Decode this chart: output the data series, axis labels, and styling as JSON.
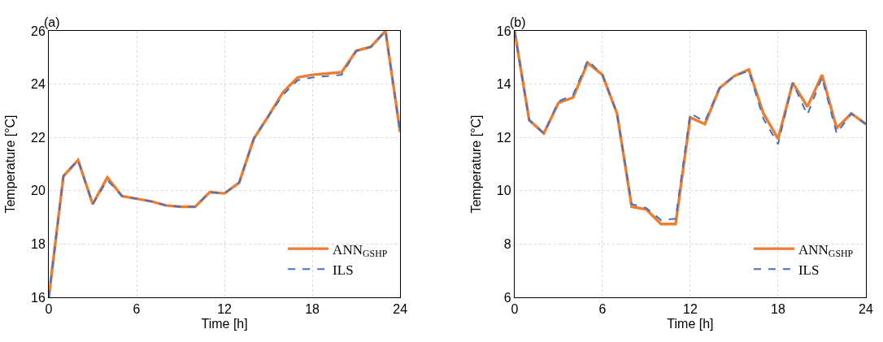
{
  "chart_data": [
    {
      "type": "line",
      "title": "(a)",
      "xlabel": "Time [h]",
      "ylabel": "Temperature [°C]",
      "x": [
        0,
        1,
        2,
        3,
        4,
        5,
        6,
        7,
        8,
        9,
        10,
        11,
        12,
        13,
        14,
        15,
        16,
        17,
        18,
        19,
        20,
        21,
        22,
        23,
        24
      ],
      "series": [
        {
          "name": "ANN$_{GSHP}$",
          "color": "#ed7d31",
          "line_style": "solid",
          "values": [
            16,
            20.55,
            21.15,
            19.5,
            20.5,
            19.8,
            19.7,
            19.6,
            19.45,
            19.4,
            19.4,
            19.95,
            19.9,
            20.3,
            21.95,
            22.8,
            23.7,
            24.25,
            24.35,
            24.4,
            24.45,
            25.25,
            25.4,
            26,
            22.2
          ]
        },
        {
          "name": "ILS",
          "color": "#4472c4",
          "line_style": "dashed",
          "values": [
            16,
            20.55,
            21.15,
            19.5,
            20.4,
            19.8,
            19.7,
            19.6,
            19.45,
            19.4,
            19.4,
            19.95,
            19.9,
            20.3,
            21.95,
            22.8,
            23.6,
            24.15,
            24.25,
            24.3,
            24.35,
            25.25,
            25.4,
            26,
            22.2
          ]
        }
      ],
      "xlim": [
        0,
        24
      ],
      "xticks": [
        0,
        6,
        12,
        18,
        24
      ],
      "ylim": [
        16,
        26
      ],
      "yticks": [
        16,
        18,
        20,
        22,
        24,
        26
      ],
      "grid": true,
      "legend": "bottom right"
    },
    {
      "type": "line",
      "title": "(b)",
      "xlabel": "Time [h]",
      "ylabel": "Temperature [°C]",
      "x": [
        0,
        1,
        2,
        3,
        4,
        5,
        6,
        7,
        8,
        9,
        10,
        11,
        12,
        13,
        14,
        15,
        16,
        17,
        18,
        19,
        20,
        21,
        22,
        23,
        24
      ],
      "series": [
        {
          "name": "ANN$_{GSHP}$",
          "color": "#ed7d31",
          "line_style": "solid",
          "values": [
            16,
            12.65,
            12.15,
            13.3,
            13.5,
            14.8,
            14.35,
            12.9,
            9.4,
            9.3,
            8.75,
            8.75,
            12.75,
            12.5,
            13.85,
            14.3,
            14.55,
            12.9,
            11.95,
            14.05,
            13.15,
            14.35,
            12.35,
            12.9,
            12.5
          ]
        },
        {
          "name": "ILS",
          "color": "#4472c4",
          "line_style": "dashed",
          "values": [
            16,
            12.65,
            12.15,
            13.35,
            13.6,
            14.9,
            14.35,
            12.9,
            9.5,
            9.35,
            8.9,
            8.95,
            12.9,
            12.6,
            13.85,
            14.3,
            14.5,
            12.7,
            11.75,
            14.05,
            12.85,
            14.25,
            12.15,
            12.9,
            12.5
          ]
        }
      ],
      "xlim": [
        0,
        24
      ],
      "xticks": [
        0,
        6,
        12,
        18,
        24
      ],
      "ylim": [
        6,
        16
      ],
      "yticks": [
        6,
        8,
        10,
        12,
        14,
        16
      ],
      "grid": true,
      "legend": "bottom right"
    }
  ]
}
